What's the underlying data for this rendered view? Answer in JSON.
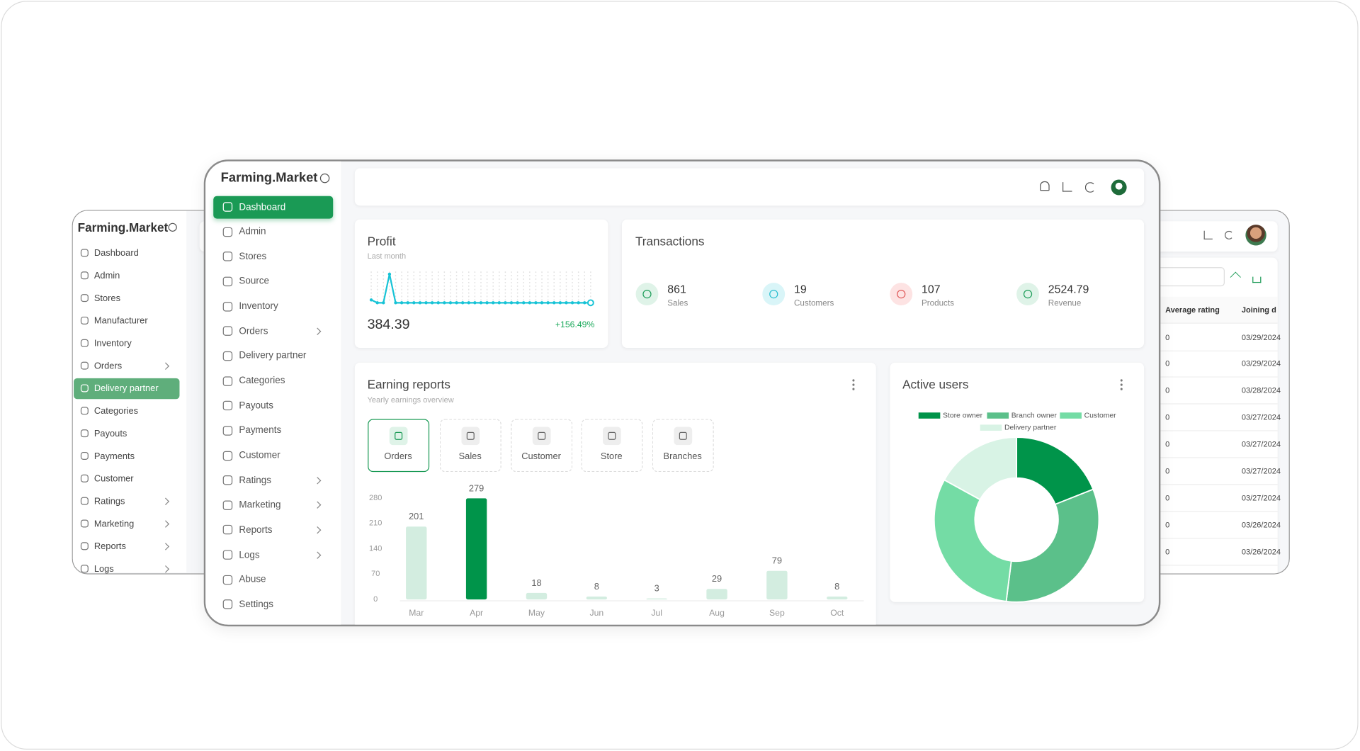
{
  "left_window": {
    "brand": "Farming.Market",
    "menu": [
      "Dashboard",
      "Admin",
      "Stores",
      "Manufacturer",
      "Inventory",
      "Orders",
      "Delivery partner",
      "Categories",
      "Payouts",
      "Payments",
      "Customer",
      "Ratings",
      "Marketing",
      "Reports",
      "Logs"
    ]
  },
  "right_window": {
    "table": {
      "columns": [
        "Average rating",
        "Joining d"
      ],
      "rows": [
        [
          0,
          "03/29/2024"
        ],
        [
          0,
          "03/29/2024"
        ],
        [
          0,
          "03/28/2024"
        ],
        [
          0,
          "03/27/2024"
        ],
        [
          0,
          "03/27/2024"
        ],
        [
          0,
          "03/27/2024"
        ],
        [
          0,
          "03/27/2024"
        ],
        [
          0,
          "03/26/2024"
        ],
        [
          0,
          "03/26/2024"
        ]
      ]
    }
  },
  "main_window": {
    "brand": "Farming.Market",
    "menu": [
      "Dashboard",
      "Admin",
      "Stores",
      "Source",
      "Inventory",
      "Orders",
      "Delivery partner",
      "Categories",
      "Payouts",
      "Payments",
      "Customer",
      "Ratings",
      "Marketing",
      "Reports",
      "Logs",
      "Abuse",
      "Settings"
    ]
  },
  "profit": {
    "title": "Profit",
    "subtitle": "Last month",
    "amount": 384.39,
    "change": "+156.49%",
    "chart": {
      "type": "line",
      "color": "#17c3d6",
      "ylim": [
        0,
        10
      ],
      "values": [
        1,
        0,
        0,
        10,
        0,
        0,
        0,
        0,
        0,
        0,
        0,
        0,
        0,
        0,
        0,
        0,
        0,
        0,
        0,
        0,
        0,
        0,
        0,
        0,
        0,
        0,
        0,
        0,
        0,
        0,
        0,
        0,
        0,
        0,
        0,
        0,
        0
      ]
    }
  },
  "transactions": {
    "title": "Transactions",
    "items": [
      {
        "value": 861,
        "label": "Sales"
      },
      {
        "value": 19,
        "label": "Customers"
      },
      {
        "value": 107,
        "label": "Products"
      },
      {
        "value": 2524.79,
        "label": "Revenue"
      }
    ]
  },
  "earning_reports": {
    "title": "Earning reports",
    "subtitle": "Yearly earnings overview",
    "tabs": [
      "Orders",
      "Sales",
      "Customer",
      "Store",
      "Branches"
    ],
    "chart": {
      "type": "bar",
      "categories": [
        "Mar",
        "Apr",
        "May",
        "Jun",
        "Jul",
        "Aug",
        "Sep",
        "Oct"
      ],
      "values": [
        201,
        279,
        18,
        8,
        3,
        29,
        79,
        8
      ],
      "colors": [
        "#d3ede0",
        "#00944a",
        "#d3ede0",
        "#d3ede0",
        "#d3ede0",
        "#d3ede0",
        "#d3ede0",
        "#d3ede0"
      ],
      "ylim": [
        0,
        280
      ],
      "yticks": [
        0,
        70,
        140,
        210,
        280
      ]
    }
  },
  "active_users": {
    "title": "Active users",
    "chart": {
      "type": "pie",
      "categories": [
        "Store owner",
        "Branch owner",
        "Customer",
        "Delivery partner"
      ],
      "values": [
        19,
        33,
        31,
        17
      ],
      "colors": [
        "#00944a",
        "#5bc08a",
        "#74dca5",
        "#d8f3e5"
      ]
    }
  }
}
